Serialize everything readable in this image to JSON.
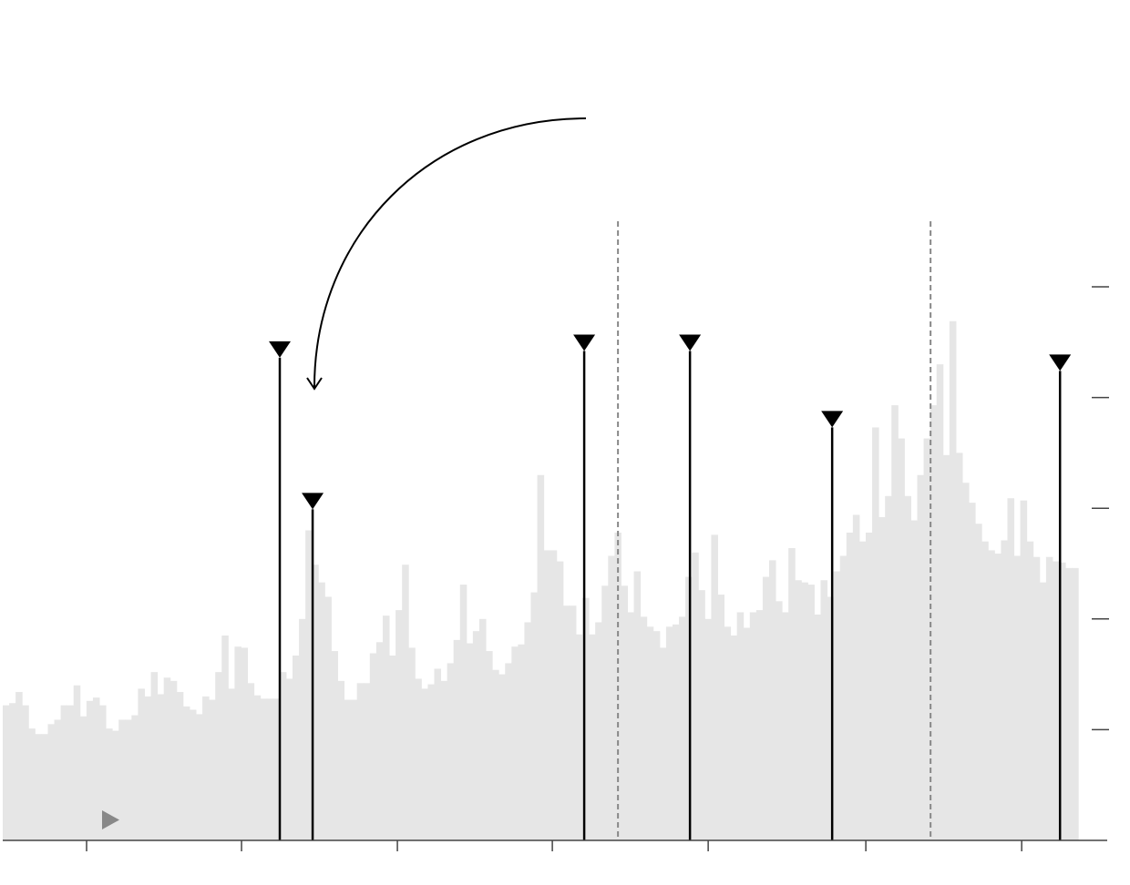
{
  "chart_data": {
    "type": "histogram",
    "color": "#e6e6e6",
    "bins": [
      0,
      1,
      2,
      3,
      4,
      5,
      6,
      7,
      8,
      9,
      10,
      11,
      12,
      13,
      14,
      15,
      16,
      17,
      18,
      19,
      20,
      21,
      22,
      23,
      24,
      25,
      26,
      27,
      28,
      29,
      30,
      31,
      32,
      33,
      34,
      35,
      36,
      37,
      38,
      39,
      40,
      41,
      42,
      43,
      44,
      45,
      46,
      47,
      48,
      49,
      50,
      51,
      52,
      53,
      54,
      55,
      56,
      57,
      58,
      59,
      60,
      61,
      62,
      63,
      64,
      65,
      66,
      67,
      68,
      69,
      70,
      71,
      72,
      73,
      74,
      75,
      76,
      77,
      78,
      79,
      80,
      81,
      82,
      83,
      84,
      85,
      86,
      87,
      88,
      89,
      90,
      91,
      92,
      93,
      94,
      95,
      96,
      97,
      98,
      99,
      100,
      101,
      102,
      103,
      104,
      105,
      106,
      107,
      108,
      109,
      110,
      111,
      112,
      113,
      114,
      115,
      116,
      117,
      118,
      119,
      120,
      121,
      122,
      123,
      124,
      125,
      126,
      127,
      128,
      129,
      130,
      131,
      132,
      133,
      134,
      135,
      136,
      137,
      138,
      139,
      140,
      141,
      142,
      143,
      144,
      145,
      146,
      147,
      148,
      149,
      150,
      151,
      152,
      153,
      154,
      155,
      156,
      157,
      158,
      159,
      160,
      161,
      162,
      163,
      164,
      165,
      166,
      167
    ],
    "values": [
      1.22,
      1.24,
      1.34,
      1.22,
      1.01,
      0.96,
      0.96,
      1.05,
      1.09,
      1.22,
      1.22,
      1.4,
      1.12,
      1.26,
      1.29,
      1.22,
      1.01,
      0.99,
      1.09,
      1.09,
      1.13,
      1.37,
      1.3,
      1.52,
      1.32,
      1.47,
      1.44,
      1.34,
      1.21,
      1.18,
      1.14,
      1.3,
      1.27,
      1.52,
      1.85,
      1.37,
      1.75,
      1.74,
      1.42,
      1.31,
      1.28,
      1.28,
      1.28,
      1.52,
      1.46,
      1.67,
      2.0,
      2.8,
      2.49,
      2.33,
      2.2,
      1.71,
      1.44,
      1.27,
      1.27,
      1.42,
      1.42,
      1.69,
      1.79,
      2.03,
      1.67,
      2.08,
      2.49,
      1.74,
      1.46,
      1.37,
      1.41,
      1.55,
      1.44,
      1.6,
      1.81,
      2.31,
      1.78,
      1.89,
      2.0,
      1.71,
      1.54,
      1.5,
      1.6,
      1.75,
      1.77,
      1.97,
      2.24,
      3.3,
      2.62,
      2.62,
      2.52,
      2.12,
      2.12,
      1.86,
      2.19,
      1.86,
      1.97,
      2.3,
      2.57,
      2.78,
      2.3,
      2.06,
      2.43,
      2.02,
      1.93,
      1.89,
      1.74,
      1.93,
      1.95,
      2.02,
      2.38,
      2.6,
      2.26,
      2.0,
      2.76,
      2.22,
      1.93,
      1.85,
      2.06,
      1.92,
      2.06,
      2.08,
      2.38,
      2.53,
      2.16,
      2.06,
      2.64,
      2.35,
      2.33,
      2.31,
      2.04,
      2.35,
      2.2,
      2.43,
      2.57,
      2.78,
      2.94,
      2.7,
      2.78,
      3.73,
      2.92,
      3.11,
      3.93,
      3.63,
      3.11,
      2.89,
      3.3,
      3.63,
      3.93,
      4.3,
      3.48,
      4.69,
      3.5,
      3.23,
      3.05,
      2.86,
      2.7,
      2.62,
      2.59,
      2.71,
      3.09,
      2.57,
      3.07,
      2.7,
      2.56,
      2.33,
      2.56,
      2.52,
      2.51,
      2.46,
      2.46
    ],
    "events": {
      "color": "#000000",
      "x": [
        43.02,
        48.12,
        90.29,
        106.71,
        128.79,
        164.17
      ],
      "values": [
        4.36,
        2.99,
        4.42,
        4.42,
        3.73,
        4.24
      ]
    },
    "reference_lines": {
      "color": "#888888",
      "x": [
        95.53,
        144.07
      ]
    },
    "xlim": [
      0,
      171.5
    ],
    "xticks": [
      13.02,
      37.08,
      61.28,
      85.34,
      109.54,
      134.02,
      158.22
    ],
    "ylim": [
      0,
      5
    ],
    "yticks": [
      1,
      2,
      3,
      4,
      5
    ]
  }
}
